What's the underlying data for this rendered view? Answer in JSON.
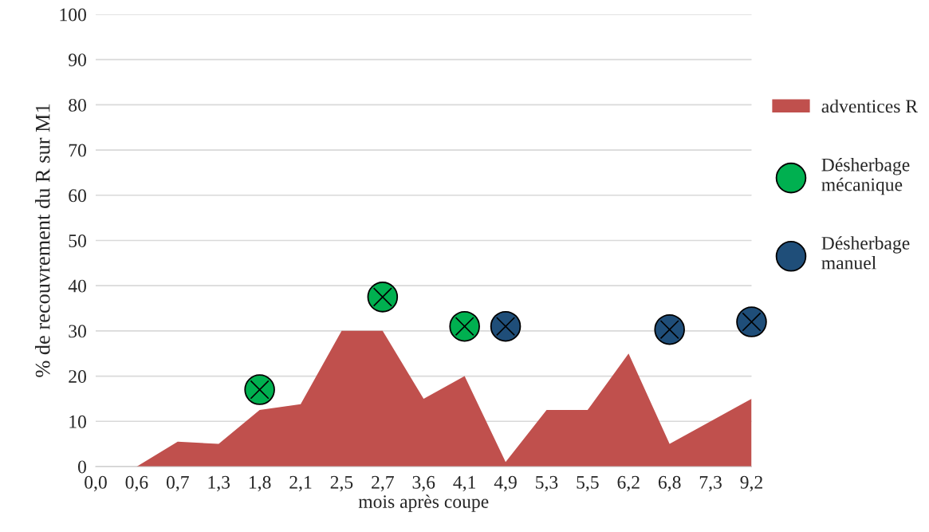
{
  "chart_data": {
    "type": "area",
    "xlabel": "mois après coupe",
    "ylabel": "% de recouvrement du R sur M1",
    "categories": [
      "0,0",
      "0,6",
      "0,7",
      "1,3",
      "1,8",
      "2,1",
      "2,5",
      "2,7",
      "3,6",
      "4,1",
      "4,9",
      "5,3",
      "5,5",
      "6,2",
      "6,8",
      "7,3",
      "9,2"
    ],
    "ylim": [
      0,
      100
    ],
    "yticks": [
      0,
      10,
      20,
      30,
      40,
      50,
      60,
      70,
      80,
      90,
      100
    ],
    "grid": "y",
    "legend": "right",
    "series": [
      {
        "name": "adventices R",
        "color": "#c0504d",
        "values": [
          0,
          0,
          5.5,
          5,
          12.5,
          13.8,
          30,
          30,
          15,
          20,
          1,
          12.5,
          12.5,
          25,
          5,
          10,
          15
        ]
      },
      {
        "type": "scatter",
        "name": "Désherbage\nmécanique",
        "color": "#00b050",
        "marker": "circle",
        "x": [
          "1,8",
          "2,7",
          "4,1"
        ],
        "values": [
          17,
          37.5,
          31
        ]
      },
      {
        "type": "scatter",
        "name": "Désherbage\nmanuel",
        "color": "#1f4e79",
        "marker": "circle",
        "x": [
          "4,9",
          "6,8",
          "9,2"
        ],
        "values": [
          31,
          30.3,
          32
        ]
      }
    ]
  }
}
